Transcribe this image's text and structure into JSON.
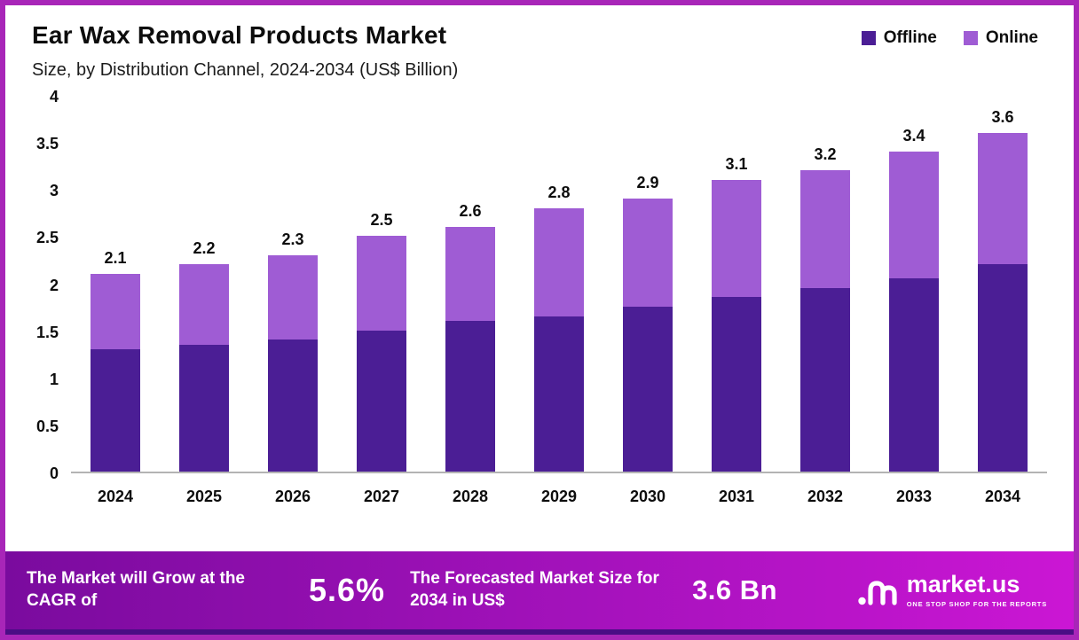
{
  "header": {
    "title": "Ear Wax Removal Products Market",
    "subtitle": "Size, by Distribution Channel, 2024-2034 (US$ Billion)"
  },
  "legend": [
    {
      "label": "Offline",
      "color": "#4b1e95"
    },
    {
      "label": "Online",
      "color": "#9f5cd4"
    }
  ],
  "chart_data": {
    "type": "bar",
    "stacked": true,
    "title": "Ear Wax Removal Products Market",
    "subtitle": "Size, by Distribution Channel, 2024-2034 (US$ Billion)",
    "xlabel": "",
    "ylabel": "US$ Billion",
    "categories": [
      "2024",
      "2025",
      "2026",
      "2027",
      "2028",
      "2029",
      "2030",
      "2031",
      "2032",
      "2033",
      "2034"
    ],
    "series": [
      {
        "name": "Offline",
        "color": "#4b1e95",
        "values": [
          1.3,
          1.35,
          1.4,
          1.5,
          1.6,
          1.65,
          1.75,
          1.85,
          1.95,
          2.05,
          2.2
        ]
      },
      {
        "name": "Online",
        "color": "#9f5cd4",
        "values": [
          0.8,
          0.85,
          0.9,
          1.0,
          1.0,
          1.15,
          1.15,
          1.25,
          1.25,
          1.35,
          1.4
        ]
      }
    ],
    "totals": [
      2.1,
      2.2,
      2.3,
      2.5,
      2.6,
      2.8,
      2.9,
      3.1,
      3.2,
      3.4,
      3.6
    ],
    "total_labels": [
      "2.1",
      "2.2",
      "2.3",
      "2.5",
      "2.6",
      "2.8",
      "2.9",
      "3.1",
      "3.2",
      "3.4",
      "3.6"
    ],
    "ylim": [
      0,
      4
    ],
    "yticks": [
      "4",
      "3.5",
      "3",
      "2.5",
      "2",
      "1.5",
      "1",
      "0.5",
      "0"
    ],
    "grid": false,
    "legend_position": "top-right"
  },
  "footer": {
    "cagr_text": "The Market will Grow at the CAGR of",
    "cagr_value": "5.6%",
    "forecast_text": "The Forecasted Market Size for 2034 in US$",
    "forecast_value": "3.6 Bn",
    "logo_text": "market.us",
    "logo_tagline": "ONE STOP SHOP FOR THE REPORTS"
  }
}
